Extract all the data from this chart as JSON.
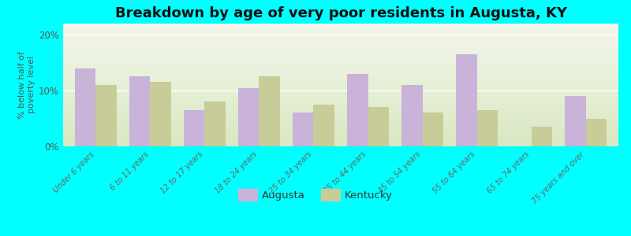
{
  "title": "Breakdown by age of very poor residents in Augusta, KY",
  "categories": [
    "Under 6 years",
    "6 to 11 years",
    "12 to 17 years",
    "18 to 24 years",
    "25 to 34 years",
    "35 to 44 years",
    "45 to 54 years",
    "55 to 64 years",
    "65 to 74 years",
    "75 years and over"
  ],
  "augusta_values": [
    14.0,
    12.5,
    6.5,
    10.5,
    6.0,
    13.0,
    11.0,
    16.5,
    0.0,
    9.0
  ],
  "kentucky_values": [
    11.0,
    11.5,
    8.0,
    12.5,
    7.5,
    7.0,
    6.0,
    6.5,
    3.5,
    5.0
  ],
  "augusta_color": "#c9b3d9",
  "kentucky_color": "#c8cc99",
  "background_color": "#00ffff",
  "plot_bg_color": "#eaf0dc",
  "ylabel": "% below half of\npoverty level",
  "ylim": [
    0,
    22
  ],
  "yticks": [
    0,
    10,
    20
  ],
  "ytick_labels": [
    "0%",
    "10%",
    "20%"
  ],
  "title_fontsize": 13,
  "bar_width": 0.38,
  "legend_labels": [
    "Augusta",
    "Kentucky"
  ]
}
